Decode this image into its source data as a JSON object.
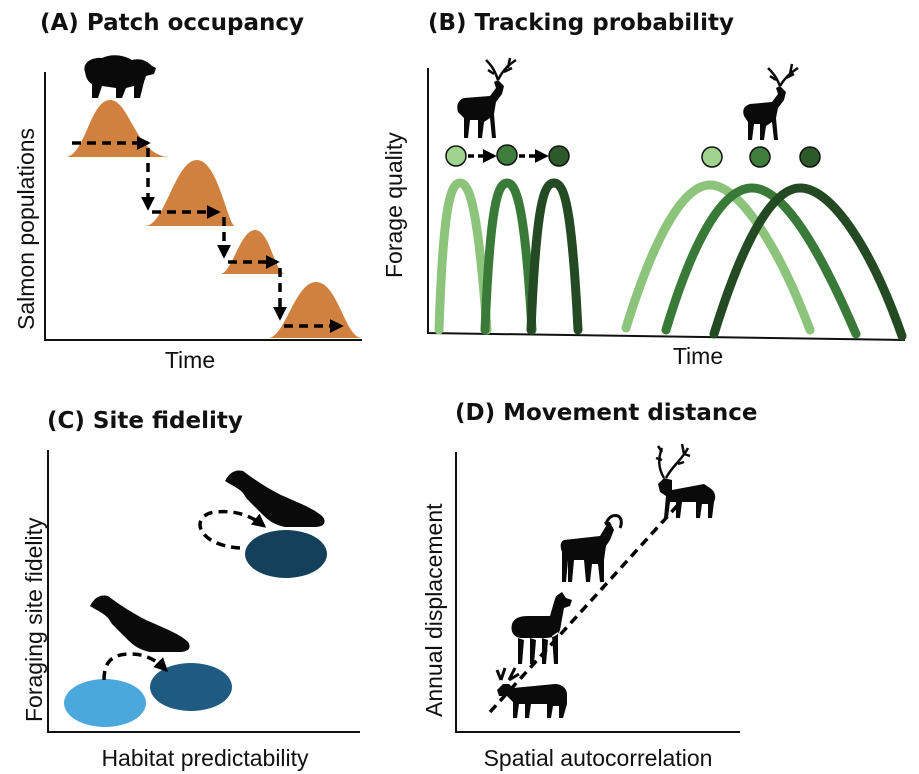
{
  "panels": {
    "a": {
      "title": "(A) Patch occupancy",
      "y_label": "Salmon populations",
      "x_label": "Time",
      "icon": "bear-icon",
      "hump_color": "#d0813f"
    },
    "b": {
      "title": "(B) Tracking probability",
      "y_label": "Forage quality",
      "x_label": "Time",
      "icon": "deer-icon",
      "curve_colors": [
        "#8cc47c",
        "#3a7a38",
        "#234a22"
      ]
    },
    "c": {
      "title": "(C) Site fidelity",
      "y_label": "Foraging site fidelity",
      "x_label": "Habitat predictability",
      "icon": "seal-icon",
      "patch_colors": [
        "#4aa8dc",
        "#1e5a82",
        "#14405c"
      ]
    },
    "d": {
      "title": "(D) Movement distance",
      "y_label": "Annual displacement",
      "x_label": "Spatial autocorrelation",
      "icons": [
        "moose-icon",
        "llama-icon",
        "ibex-icon",
        "caribou-icon"
      ]
    }
  }
}
